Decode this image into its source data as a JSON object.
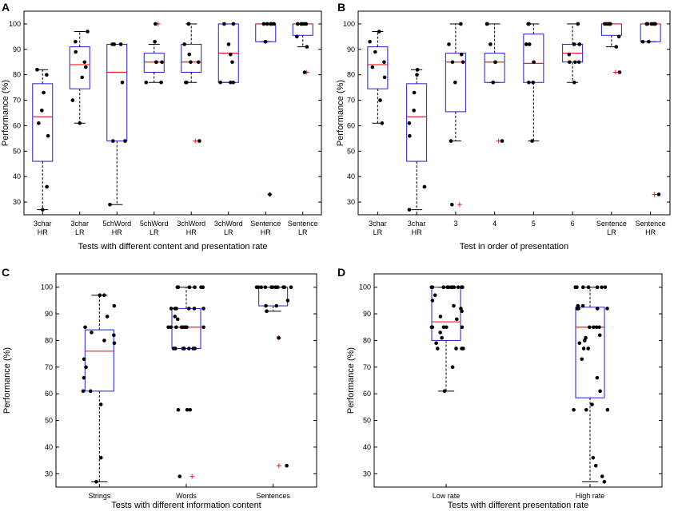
{
  "chart_data": [
    {
      "panel": "A",
      "type": "box",
      "xlabel": "Tests with different content and presentation rate",
      "ylabel": "Performance (%)",
      "ylim": [
        25,
        105
      ],
      "yticks": [
        30,
        40,
        50,
        60,
        70,
        80,
        90,
        100
      ],
      "categories": [
        [
          "3char",
          "HR"
        ],
        [
          "3char",
          "LR"
        ],
        [
          "5chWord",
          "HR"
        ],
        [
          "5chWord",
          "LR"
        ],
        [
          "3chWord",
          "HR"
        ],
        [
          "3chWord",
          "LR"
        ],
        [
          "Sentence",
          "HR"
        ],
        [
          "Sentence",
          "LR"
        ]
      ],
      "boxes": [
        {
          "q1": 46,
          "median": 63.5,
          "q3": 76.5,
          "wlow": 27,
          "whigh": 82,
          "outliers": []
        },
        {
          "q1": 74.5,
          "median": 84,
          "q3": 91,
          "wlow": 61,
          "whigh": 97,
          "outliers": []
        },
        {
          "q1": 54,
          "median": 81,
          "q3": 92,
          "wlow": 29,
          "whigh": 92,
          "outliers": []
        },
        {
          "q1": 81,
          "median": 85,
          "q3": 88.5,
          "wlow": 77,
          "whigh": 92,
          "outliers": [
            100
          ]
        },
        {
          "q1": 81,
          "median": 85,
          "q3": 92,
          "wlow": 77,
          "whigh": 100,
          "outliers": [
            54
          ]
        },
        {
          "q1": 77,
          "median": 88.5,
          "q3": 100,
          "wlow": 77,
          "whigh": 100,
          "outliers": []
        },
        {
          "q1": 93,
          "median": 100,
          "q3": 100,
          "wlow": 93,
          "whigh": 100,
          "outliers": [
            33
          ]
        },
        {
          "q1": 95.5,
          "median": 100,
          "q3": 100,
          "wlow": 91,
          "whigh": 100,
          "outliers": [
            81
          ]
        }
      ],
      "points": [
        [
          82,
          80,
          73,
          66,
          61,
          56,
          36,
          27
        ],
        [
          97,
          93,
          89,
          85,
          83,
          79,
          70,
          61
        ],
        [
          92,
          92,
          92,
          77,
          54,
          54,
          29
        ],
        [
          100,
          93,
          85,
          85,
          85,
          77,
          77
        ],
        [
          100,
          92,
          88,
          85,
          85,
          77,
          77,
          54
        ],
        [
          100,
          100,
          92,
          88,
          85,
          77,
          77,
          77
        ],
        [
          100,
          100,
          100,
          100,
          100,
          93,
          93,
          33
        ],
        [
          100,
          100,
          100,
          100,
          100,
          95,
          91,
          81
        ]
      ]
    },
    {
      "panel": "B",
      "type": "box",
      "xlabel": "Test in order of presentation",
      "ylabel": "Performance (%)",
      "ylim": [
        25,
        105
      ],
      "yticks": [
        30,
        40,
        50,
        60,
        70,
        80,
        90,
        100
      ],
      "categories": [
        [
          "3char",
          "LR"
        ],
        [
          "3char",
          "HR"
        ],
        [
          "3"
        ],
        [
          "4"
        ],
        [
          "5"
        ],
        [
          "6"
        ],
        [
          "Sentence",
          "LR"
        ],
        [
          "Sentence",
          "HR"
        ]
      ],
      "boxes": [
        {
          "q1": 74.5,
          "median": 84,
          "q3": 91,
          "wlow": 61,
          "whigh": 97,
          "outliers": []
        },
        {
          "q1": 46,
          "median": 63.5,
          "q3": 76.5,
          "wlow": 27,
          "whigh": 82,
          "outliers": []
        },
        {
          "q1": 65.5,
          "median": 85,
          "q3": 88.5,
          "wlow": 54,
          "whigh": 100,
          "outliers": [
            29
          ]
        },
        {
          "q1": 77,
          "median": 85,
          "q3": 88.5,
          "wlow": 77,
          "whigh": 100,
          "outliers": [
            54
          ]
        },
        {
          "q1": 77,
          "median": 84.5,
          "q3": 96,
          "wlow": 54,
          "whigh": 100,
          "outliers": []
        },
        {
          "q1": 85,
          "median": 88.5,
          "q3": 92,
          "wlow": 77,
          "whigh": 100,
          "outliers": []
        },
        {
          "q1": 95.5,
          "median": 100,
          "q3": 100,
          "wlow": 91,
          "whigh": 100,
          "outliers": [
            81
          ]
        },
        {
          "q1": 93,
          "median": 100,
          "q3": 100,
          "wlow": 93,
          "whigh": 100,
          "outliers": [
            33
          ]
        }
      ],
      "points": [
        [
          97,
          93,
          89,
          85,
          83,
          79,
          70,
          61
        ],
        [
          82,
          80,
          73,
          66,
          61,
          56,
          36,
          27
        ],
        [
          100,
          92,
          88,
          85,
          85,
          77,
          54,
          29
        ],
        [
          100,
          100,
          92,
          85,
          85,
          77,
          77,
          54
        ],
        [
          100,
          100,
          92,
          92,
          85,
          77,
          77,
          54
        ],
        [
          100,
          92,
          92,
          88,
          85,
          85,
          85,
          77
        ],
        [
          100,
          100,
          100,
          100,
          100,
          95,
          91,
          81
        ],
        [
          100,
          100,
          100,
          100,
          100,
          93,
          93,
          33
        ]
      ]
    },
    {
      "panel": "C",
      "type": "box",
      "xlabel": "Tests with different information content",
      "ylabel": "Performance (%)",
      "ylim": [
        25,
        105
      ],
      "yticks": [
        30,
        40,
        50,
        60,
        70,
        80,
        90,
        100
      ],
      "categories": [
        [
          "Strings"
        ],
        [
          "Words"
        ],
        [
          "Sentences"
        ]
      ],
      "boxes": [
        {
          "q1": 61,
          "median": 76,
          "q3": 84,
          "wlow": 27,
          "whigh": 97,
          "outliers": []
        },
        {
          "q1": 77,
          "median": 85,
          "q3": 92,
          "wlow": 77,
          "whigh": 100,
          "outliers": [
            29
          ]
        },
        {
          "q1": 93,
          "median": 100,
          "q3": 100,
          "wlow": 91,
          "whigh": 100,
          "outliers": [
            81,
            33
          ]
        }
      ],
      "points": [
        [
          97,
          97,
          93,
          89,
          85,
          83,
          82,
          80,
          79,
          73,
          70,
          66,
          61,
          61,
          56,
          36,
          27
        ],
        [
          100,
          100,
          100,
          100,
          100,
          100,
          92,
          92,
          92,
          92,
          92,
          92,
          89,
          88,
          85,
          85,
          85,
          85,
          85,
          85,
          85,
          85,
          77,
          77,
          77,
          77,
          77,
          77,
          77,
          54,
          54,
          54,
          29
        ],
        [
          100,
          100,
          100,
          100,
          100,
          100,
          100,
          100,
          100,
          100,
          100,
          100,
          95,
          93,
          93,
          91,
          81,
          33
        ]
      ]
    },
    {
      "panel": "D",
      "type": "box",
      "xlabel": "Tests with different presentation rate",
      "ylabel": "Performance (%)",
      "ylim": [
        25,
        105
      ],
      "yticks": [
        30,
        40,
        50,
        60,
        70,
        80,
        90,
        100
      ],
      "categories": [
        [
          "Low rate"
        ],
        [
          "High rate"
        ]
      ],
      "boxes": [
        {
          "q1": 80,
          "median": 87,
          "q3": 100,
          "wlow": 61,
          "whigh": 100,
          "outliers": []
        },
        {
          "q1": 58.5,
          "median": 85,
          "q3": 92.5,
          "wlow": 27,
          "whigh": 100,
          "outliers": []
        }
      ],
      "points": [
        [
          100,
          100,
          100,
          100,
          100,
          100,
          100,
          100,
          100,
          100,
          100,
          100,
          97,
          95,
          93,
          92,
          91,
          89,
          88,
          85,
          85,
          85,
          85,
          85,
          83,
          81,
          79,
          77,
          77,
          77,
          77,
          70,
          61
        ],
        [
          100,
          100,
          100,
          100,
          100,
          100,
          100,
          93,
          93,
          92,
          92,
          92,
          92,
          85,
          85,
          85,
          85,
          82,
          81,
          80,
          79,
          77,
          77,
          73,
          66,
          61,
          56,
          54,
          54,
          54,
          36,
          33,
          29,
          27
        ]
      ]
    }
  ]
}
